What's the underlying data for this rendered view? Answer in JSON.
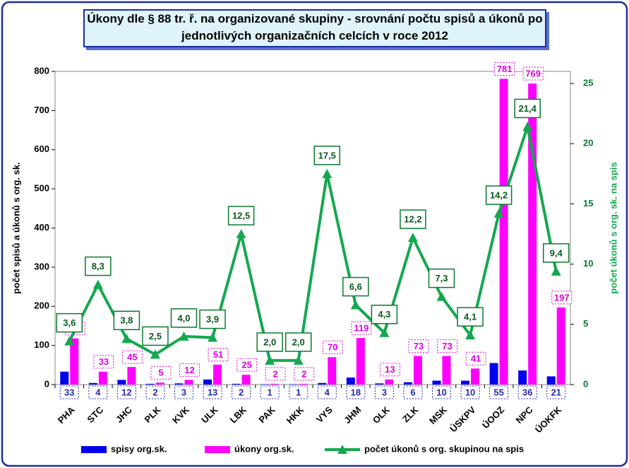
{
  "chart_data": {
    "type": "bar-line",
    "title": "Úkony dle § 88 tr. ř.  na organizované skupiny -  srovnání počtu spisů a úkonů po jednotlivých organizačních celcích v roce 2012",
    "y_label": "počet  spisů  a úkonů  s org.  sk.",
    "y2_label": "počet úkonů  s org. sk. na spis",
    "categories": [
      "PHA",
      "STC",
      "JHC",
      "PLK",
      "KVK",
      "ULK",
      "LBK",
      "PAK",
      "HKK",
      "VYS",
      "JHM",
      "OLK",
      "ZLK",
      "MSK",
      "ÚSKPV",
      "ÚOOZ",
      "NPC",
      "ÚOKFK"
    ],
    "series": [
      {
        "name": "spisy org.sk.",
        "type": "bar",
        "color": "#0000ee",
        "values": [
          33,
          4,
          12,
          2,
          3,
          13,
          2,
          1,
          1,
          4,
          18,
          3,
          6,
          10,
          10,
          55,
          36,
          21
        ]
      },
      {
        "name": "úkony org.sk.",
        "type": "bar",
        "color": "#ff00ff",
        "values": [
          118,
          33,
          45,
          5,
          12,
          51,
          25,
          2,
          2,
          70,
          119,
          13,
          73,
          73,
          41,
          781,
          769,
          197
        ]
      },
      {
        "name": "počet úkonů s org. skupinou na spis",
        "type": "line",
        "axis": "y2",
        "color": "#14a84e",
        "values": [
          3.6,
          8.3,
          3.8,
          2.5,
          4.0,
          3.9,
          12.5,
          2.0,
          2.0,
          17.5,
          6.6,
          4.3,
          12.2,
          7.3,
          4.1,
          14.2,
          21.4,
          9.4
        ],
        "value_labels": [
          "3,6",
          "8,3",
          "3,8",
          "2,5",
          "4,0",
          "3,9",
          "12,5",
          "2,0",
          "2,0",
          "17,5",
          "6,6",
          "4,3",
          "12,2",
          "7,3",
          "4,1",
          "14,2",
          "21,4",
          "9,4"
        ]
      }
    ],
    "ylim": [
      0,
      800
    ],
    "yticks": [
      0,
      100,
      200,
      300,
      400,
      500,
      600,
      700,
      800
    ],
    "y2lim": [
      0,
      26
    ],
    "y2ticks": [
      0,
      5,
      10,
      15,
      20,
      25
    ],
    "legend": "bottom"
  }
}
